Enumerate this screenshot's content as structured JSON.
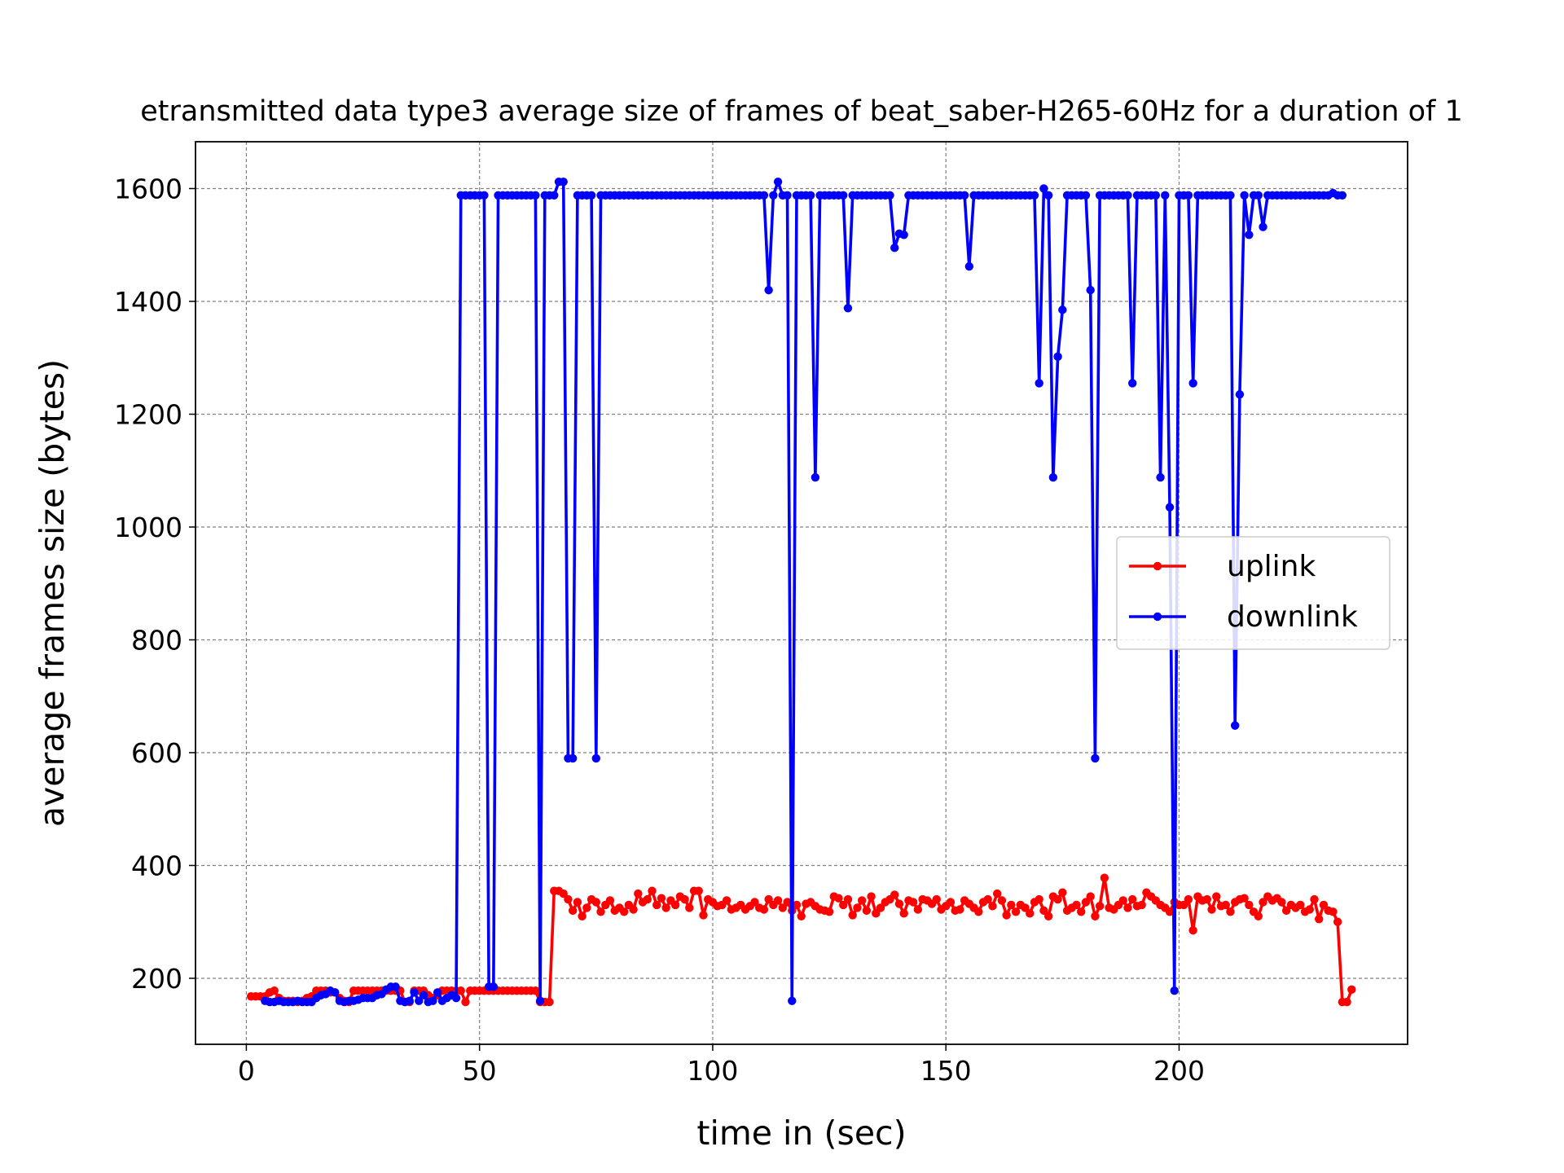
{
  "chart_data": {
    "type": "line",
    "title": "etransmitted data type3 average size of frames of beat_saber-H265-60Hz for a duration of 1",
    "x_label": "time in (sec)",
    "y_label": "average frames size (bytes)",
    "xlim": [
      -10.9,
      249
    ],
    "ylim": [
      83,
      1683
    ],
    "xticks": [
      0,
      50,
      100,
      150,
      200
    ],
    "yticks": [
      200,
      400,
      600,
      800,
      1000,
      1200,
      1400,
      1600
    ],
    "grid": true,
    "legend": "center right",
    "series": [
      {
        "name": "uplink",
        "color": "#ff0000",
        "x": [
          1,
          2,
          3,
          4,
          5,
          6,
          7,
          8,
          9,
          10,
          11,
          12,
          13,
          14,
          15,
          16,
          17,
          18,
          19,
          20,
          21,
          22,
          23,
          24,
          25,
          26,
          27,
          28,
          29,
          30,
          31,
          32,
          33,
          34,
          35,
          36,
          37,
          38,
          39,
          40,
          41,
          42,
          43,
          44,
          45,
          46,
          47,
          48,
          49,
          50,
          51,
          52,
          53,
          54,
          55,
          56,
          57,
          58,
          59,
          60,
          61,
          62,
          63,
          64,
          65,
          66,
          67,
          68,
          69,
          70,
          71,
          72,
          73,
          74,
          75,
          76,
          77,
          78,
          79,
          80,
          81,
          82,
          83,
          84,
          85,
          86,
          87,
          88,
          89,
          90,
          91,
          92,
          93,
          94,
          95,
          96,
          97,
          98,
          99,
          100,
          101,
          102,
          103,
          104,
          105,
          106,
          107,
          108,
          109,
          110,
          111,
          112,
          113,
          114,
          115,
          116,
          117,
          118,
          119,
          120,
          121,
          122,
          123,
          124,
          125,
          126,
          127,
          128,
          129,
          130,
          131,
          132,
          133,
          134,
          135,
          136,
          137,
          138,
          139,
          140,
          141,
          142,
          143,
          144,
          145,
          146,
          147,
          148,
          149,
          150,
          151,
          152,
          153,
          154,
          155,
          156,
          157,
          158,
          159,
          160,
          161,
          162,
          163,
          164,
          165,
          166,
          167,
          168,
          169,
          170,
          171,
          172,
          173,
          174,
          175,
          176,
          177,
          178,
          179,
          180,
          181,
          182,
          183,
          184,
          185,
          186,
          187,
          188,
          189,
          190,
          191,
          192,
          193,
          194,
          195,
          196,
          197,
          198,
          199,
          200,
          201,
          202,
          203,
          204,
          205,
          206,
          207,
          208,
          209,
          210,
          211,
          212,
          213,
          214,
          215,
          216,
          217,
          218,
          219,
          220,
          221,
          222,
          223,
          224,
          225,
          226,
          227,
          228,
          229,
          230,
          231,
          232,
          233,
          234,
          235,
          236,
          237
        ],
        "values": [
          168,
          168,
          168,
          168,
          175,
          178,
          165,
          160,
          160,
          160,
          158,
          160,
          165,
          168,
          178,
          178,
          178,
          175,
          175,
          165,
          160,
          158,
          178,
          178,
          178,
          178,
          178,
          178,
          178,
          178,
          178,
          178,
          178,
          158,
          158,
          178,
          178,
          178,
          170,
          165,
          170,
          178,
          178,
          178,
          178,
          178,
          158,
          178,
          178,
          178,
          178,
          178,
          178,
          178,
          178,
          178,
          178,
          178,
          178,
          178,
          178,
          178,
          158,
          158,
          158,
          355,
          355,
          350,
          340,
          320,
          335,
          310,
          325,
          340,
          335,
          318,
          330,
          338,
          320,
          325,
          318,
          330,
          322,
          350,
          335,
          340,
          355,
          330,
          342,
          325,
          338,
          330,
          345,
          340,
          325,
          355,
          355,
          312,
          340,
          335,
          328,
          330,
          338,
          322,
          325,
          330,
          322,
          328,
          335,
          325,
          322,
          340,
          330,
          338,
          325,
          335,
          320,
          330,
          310,
          332,
          335,
          328,
          322,
          320,
          318,
          345,
          342,
          330,
          340,
          312,
          325,
          338,
          320,
          345,
          315,
          325,
          335,
          340,
          348,
          332,
          315,
          338,
          335,
          322,
          340,
          338,
          332,
          340,
          322,
          328,
          335,
          320,
          322,
          338,
          332,
          325,
          318,
          335,
          340,
          328,
          350,
          338,
          312,
          330,
          318,
          330,
          325,
          315,
          335,
          340,
          320,
          310,
          345,
          340,
          352,
          320,
          325,
          330,
          318,
          335,
          345,
          310,
          328,
          378,
          325,
          322,
          330,
          338,
          325,
          340,
          328,
          330,
          352,
          345,
          338,
          330,
          325,
          318,
          335,
          330,
          330,
          340,
          285,
          345,
          338,
          340,
          322,
          345,
          328,
          330,
          318,
          335,
          340,
          342,
          330,
          318,
          310,
          335,
          345,
          338,
          342,
          335,
          320,
          330,
          325,
          330,
          318,
          322,
          340,
          305,
          330,
          320,
          318,
          300,
          158,
          158,
          180
        ]
      },
      {
        "name": "downlink",
        "color": "#0000ff",
        "x": [
          4,
          5,
          6,
          7,
          8,
          9,
          10,
          11,
          12,
          13,
          14,
          15,
          16,
          17,
          18,
          19,
          20,
          21,
          22,
          23,
          24,
          25,
          26,
          27,
          28,
          29,
          30,
          31,
          32,
          33,
          34,
          35,
          36,
          37,
          38,
          39,
          40,
          41,
          42,
          43,
          44,
          45,
          46,
          47,
          48,
          49,
          50,
          51,
          52,
          53,
          54,
          55,
          56,
          57,
          58,
          59,
          60,
          61,
          62,
          63,
          64,
          65,
          66,
          67,
          68,
          69,
          70,
          71,
          72,
          73,
          74,
          75,
          76,
          77,
          78,
          79,
          80,
          81,
          82,
          83,
          84,
          85,
          86,
          87,
          88,
          89,
          90,
          91,
          92,
          93,
          94,
          95,
          96,
          97,
          98,
          99,
          100,
          101,
          102,
          103,
          104,
          105,
          106,
          107,
          108,
          109,
          110,
          111,
          112,
          113,
          114,
          115,
          116,
          117,
          118,
          119,
          120,
          121,
          122,
          123,
          124,
          125,
          126,
          127,
          128,
          129,
          130,
          131,
          132,
          133,
          134,
          135,
          136,
          137,
          138,
          139,
          140,
          141,
          142,
          143,
          144,
          145,
          146,
          147,
          148,
          149,
          150,
          151,
          152,
          153,
          154,
          155,
          156,
          157,
          158,
          159,
          160,
          161,
          162,
          163,
          164,
          165,
          166,
          167,
          168,
          169,
          170,
          171,
          172,
          173,
          174,
          175,
          176,
          177,
          178,
          179,
          180,
          181,
          182,
          183,
          184,
          185,
          186,
          187,
          188,
          189,
          190,
          191,
          192,
          193,
          194,
          195,
          196,
          197,
          198,
          199,
          200,
          201,
          202,
          203,
          204,
          205,
          206,
          207,
          208,
          209,
          210,
          211,
          212,
          213,
          214,
          215,
          216,
          217,
          218,
          219,
          220,
          221,
          222,
          223,
          224,
          225,
          226,
          227,
          228,
          229,
          230,
          231,
          232,
          233,
          234,
          235
        ],
        "values": [
          160,
          158,
          158,
          160,
          158,
          158,
          158,
          160,
          158,
          158,
          158,
          165,
          170,
          172,
          178,
          175,
          160,
          158,
          160,
          160,
          162,
          165,
          165,
          165,
          170,
          172,
          180,
          185,
          185,
          160,
          158,
          160,
          175,
          160,
          170,
          158,
          160,
          175,
          160,
          165,
          170,
          165,
          1588,
          1588,
          1588,
          1588,
          1588,
          1588,
          185,
          185,
          1588,
          1588,
          1588,
          1588,
          1588,
          1588,
          1588,
          1588,
          1588,
          160,
          1588,
          1588,
          1588,
          1612,
          1612,
          590,
          590,
          1588,
          1588,
          1588,
          1588,
          590,
          1588,
          1588,
          1588,
          1588,
          1588,
          1588,
          1588,
          1588,
          1588,
          1588,
          1588,
          1588,
          1588,
          1588,
          1588,
          1588,
          1588,
          1588,
          1588,
          1588,
          1588,
          1588,
          1588,
          1588,
          1588,
          1588,
          1588,
          1588,
          1588,
          1588,
          1588,
          1588,
          1588,
          1588,
          1588,
          1588,
          1420,
          1588,
          1612,
          1588,
          1588,
          160,
          1588,
          1588,
          1588,
          1588,
          1088,
          1588,
          1588,
          1588,
          1588,
          1588,
          1588,
          1388,
          1588,
          1588,
          1588,
          1588,
          1588,
          1588,
          1588,
          1588,
          1588,
          1495,
          1520,
          1518,
          1588,
          1588,
          1588,
          1588,
          1588,
          1588,
          1588,
          1588,
          1588,
          1588,
          1588,
          1588,
          1588,
          1462,
          1588,
          1588,
          1588,
          1588,
          1588,
          1588,
          1588,
          1588,
          1588,
          1588,
          1588,
          1588,
          1588,
          1588,
          1255,
          1600,
          1588,
          1088,
          1302,
          1385,
          1588,
          1588,
          1588,
          1588,
          1588,
          1420,
          590,
          1588,
          1588,
          1588,
          1588,
          1588,
          1588,
          1588,
          1255,
          1588,
          1588,
          1588,
          1588,
          1588,
          1088,
          1588,
          1035,
          178,
          1588,
          1588,
          1588,
          1255,
          1588,
          1588,
          1588,
          1588,
          1588,
          1588,
          1588,
          1588,
          648,
          1235,
          1588,
          1518,
          1588,
          1588,
          1532,
          1588,
          1588,
          1588,
          1588,
          1588,
          1588,
          1588,
          1588,
          1588,
          1588,
          1588,
          1588,
          1588,
          1588,
          1592,
          1588,
          1588
        ]
      }
    ]
  }
}
